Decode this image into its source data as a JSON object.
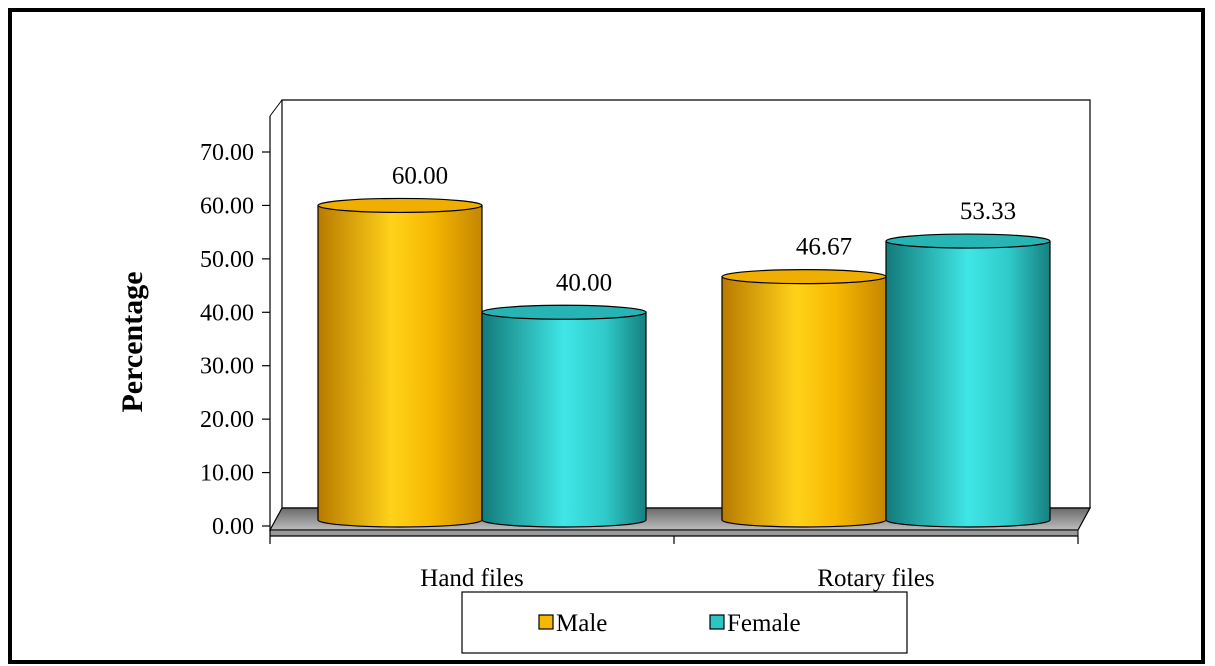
{
  "chart_data": {
    "type": "bar",
    "categories": [
      "Hand files",
      "Rotary files"
    ],
    "series": [
      {
        "name": "Male",
        "values": [
          60.0,
          46.67
        ],
        "labels": [
          "60.00",
          "46.67"
        ]
      },
      {
        "name": "Female",
        "values": [
          40.0,
          53.33
        ],
        "labels": [
          "40.00",
          "53.33"
        ]
      }
    ],
    "ylabel": "Percentage",
    "xlabel": "",
    "ylim": [
      0,
      70
    ],
    "yticks": [
      "0.00",
      "10.00",
      "20.00",
      "30.00",
      "40.00",
      "50.00",
      "60.00",
      "70.00"
    ],
    "legend_position": "bottom",
    "grid": false,
    "colors": {
      "Male": "#f7b800",
      "Female": "#2ec4c4"
    }
  }
}
